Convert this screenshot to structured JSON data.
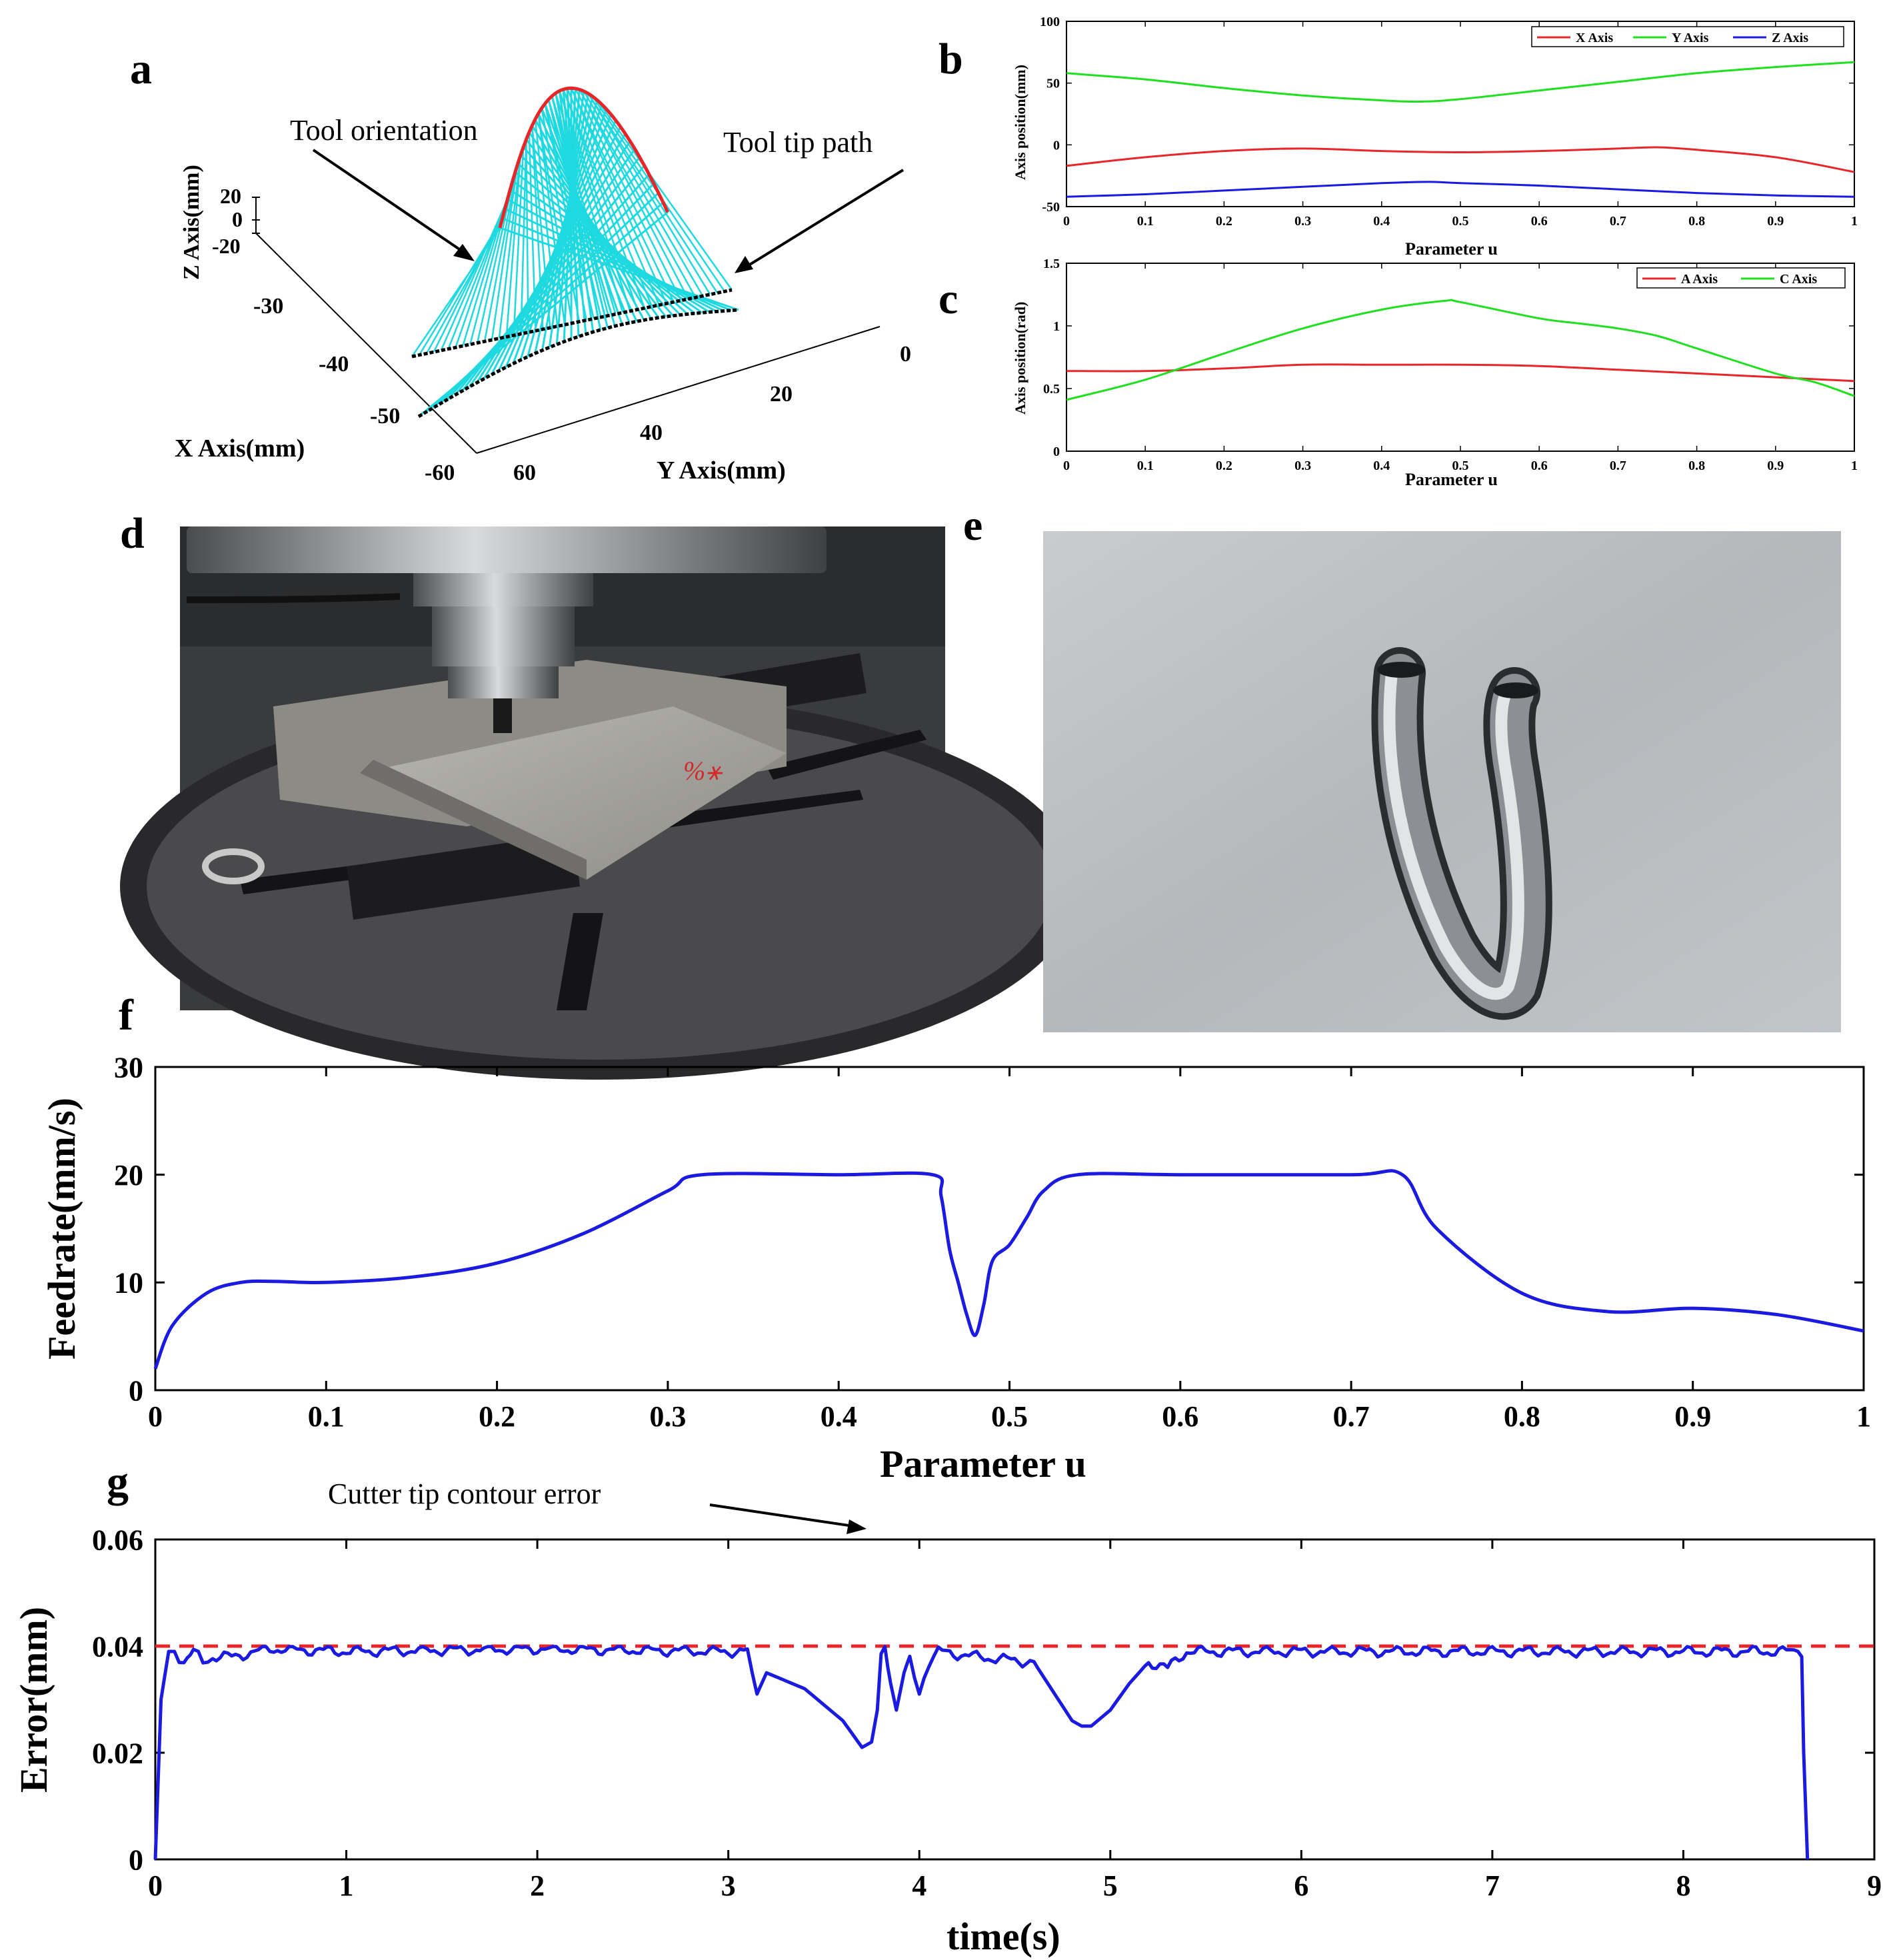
{
  "panel_labels": [
    "a",
    "b",
    "c",
    "d",
    "e",
    "f",
    "g"
  ],
  "colors": {
    "red": "#e8262a",
    "green": "#1fe01f",
    "blue": "#1a1ae0",
    "cyan": "#1fd9e0",
    "black": "#000000",
    "dashed_red": "#e8262a"
  },
  "chart_data": [
    {
      "id": "a",
      "type": "3d-line",
      "annotations": [
        "Tool orientation",
        "Tool tip path"
      ],
      "xlabel": "X Axis(mm)",
      "ylabel": "Y Axis(mm)",
      "zlabel": "Z Axis(mm)",
      "x_ticks": [
        "-30",
        "-40",
        "-50",
        "-60"
      ],
      "y_ticks": [
        "60",
        "40",
        "20",
        "0"
      ],
      "z_ticks": [
        "20",
        "0",
        "-20"
      ],
      "series": [
        {
          "name": "Tool orientation path",
          "color": "#e8262a"
        },
        {
          "name": "Tool tip path",
          "color": "#000000"
        },
        {
          "name": "Tool axis vectors",
          "color": "#1fd9e0"
        }
      ]
    },
    {
      "id": "b",
      "type": "line",
      "xlabel": "Parameter u",
      "ylabel": "Axis position(mm)",
      "xlim": [
        0,
        1
      ],
      "ylim": [
        -50,
        100
      ],
      "x_ticks": [
        "0",
        "0.1",
        "0.2",
        "0.3",
        "0.4",
        "0.5",
        "0.6",
        "0.7",
        "0.8",
        "0.9",
        "1"
      ],
      "y_ticks": [
        "-50",
        "0",
        "50",
        "100"
      ],
      "legend": [
        "X Axis",
        "Y Axis",
        "Z Axis"
      ],
      "series": [
        {
          "name": "X Axis",
          "color": "#e8262a",
          "x": [
            0,
            0.1,
            0.2,
            0.3,
            0.4,
            0.5,
            0.6,
            0.7,
            0.75,
            0.8,
            0.9,
            1
          ],
          "y": [
            -17,
            -10,
            -5,
            -3,
            -5,
            -6,
            -5,
            -3,
            -2,
            -4,
            -10,
            -22
          ]
        },
        {
          "name": "Y Axis",
          "color": "#1fe01f",
          "x": [
            0,
            0.1,
            0.2,
            0.3,
            0.4,
            0.45,
            0.5,
            0.6,
            0.7,
            0.8,
            0.9,
            1
          ],
          "y": [
            58,
            53,
            46,
            40,
            36,
            35,
            37,
            44,
            51,
            58,
            63,
            67
          ]
        },
        {
          "name": "Z Axis",
          "color": "#1a1ae0",
          "x": [
            0,
            0.1,
            0.2,
            0.3,
            0.4,
            0.46,
            0.5,
            0.6,
            0.7,
            0.8,
            0.9,
            1
          ],
          "y": [
            -42,
            -40,
            -37,
            -34,
            -31,
            -30,
            -31,
            -33,
            -36,
            -39,
            -41,
            -42
          ]
        }
      ]
    },
    {
      "id": "c",
      "type": "line",
      "xlabel": "Parameter u",
      "ylabel": "Axis position(rad)",
      "xlim": [
        0,
        1
      ],
      "ylim": [
        0,
        1.5
      ],
      "x_ticks": [
        "0",
        "0.1",
        "0.2",
        "0.3",
        "0.4",
        "0.5",
        "0.6",
        "0.7",
        "0.8",
        "0.9",
        "1"
      ],
      "y_ticks": [
        "0",
        "0.5",
        "1",
        "1.5"
      ],
      "legend": [
        "A Axis",
        "C Axis"
      ],
      "series": [
        {
          "name": "A Axis",
          "color": "#e8262a",
          "x": [
            0,
            0.1,
            0.2,
            0.3,
            0.4,
            0.5,
            0.6,
            0.7,
            0.8,
            0.9,
            1
          ],
          "y": [
            0.64,
            0.64,
            0.66,
            0.69,
            0.69,
            0.69,
            0.68,
            0.65,
            0.62,
            0.59,
            0.56
          ]
        },
        {
          "name": "C Axis",
          "color": "#1fe01f",
          "x": [
            0,
            0.1,
            0.2,
            0.3,
            0.4,
            0.48,
            0.5,
            0.6,
            0.65,
            0.7,
            0.75,
            0.8,
            0.9,
            0.95,
            1
          ],
          "y": [
            0.41,
            0.57,
            0.78,
            0.98,
            1.13,
            1.2,
            1.19,
            1.06,
            1.02,
            0.98,
            0.92,
            0.82,
            0.62,
            0.55,
            0.44
          ]
        }
      ]
    },
    {
      "id": "f",
      "type": "line",
      "xlabel": "Parameter u",
      "ylabel": "Feedrate(mm/s)",
      "xlim": [
        0,
        1
      ],
      "ylim": [
        0,
        30
      ],
      "x_ticks": [
        "0",
        "0.1",
        "0.2",
        "0.3",
        "0.4",
        "0.5",
        "0.6",
        "0.7",
        "0.8",
        "0.9",
        "1"
      ],
      "y_ticks": [
        "0",
        "10",
        "20",
        "30"
      ],
      "series": [
        {
          "name": "Feedrate",
          "color": "#1a1ae0",
          "x": [
            0,
            0.01,
            0.03,
            0.05,
            0.07,
            0.1,
            0.15,
            0.2,
            0.25,
            0.3,
            0.32,
            0.4,
            0.455,
            0.46,
            0.465,
            0.47,
            0.475,
            0.48,
            0.485,
            0.49,
            0.5,
            0.51,
            0.52,
            0.54,
            0.6,
            0.7,
            0.73,
            0.75,
            0.8,
            0.85,
            0.9,
            0.95,
            1
          ],
          "y": [
            2,
            6,
            9,
            10,
            10.1,
            10,
            10.5,
            11.8,
            14.5,
            18.5,
            20,
            20,
            20,
            18,
            13,
            10,
            7,
            5.1,
            8,
            12,
            13.5,
            16,
            18.5,
            20,
            20,
            20,
            20,
            15,
            9,
            7.3,
            7.6,
            7,
            5.5
          ]
        }
      ]
    },
    {
      "id": "g",
      "type": "line",
      "xlabel": "time(s)",
      "ylabel": "Error(mm)",
      "annotation": "Cutter tip contour error",
      "xlim": [
        0,
        9
      ],
      "ylim": [
        0,
        0.06
      ],
      "x_ticks": [
        "0",
        "1",
        "2",
        "3",
        "4",
        "5",
        "6",
        "7",
        "8",
        "9"
      ],
      "y_ticks": [
        "0",
        "0.02",
        "0.04",
        "0.06"
      ],
      "threshold": 0.04,
      "series": [
        {
          "name": "Contour error",
          "color": "#1a1ae0",
          "x": [
            0,
            0.03,
            0.07,
            0.1,
            0.15,
            0.2,
            0.25,
            0.3,
            0.4,
            0.6,
            1,
            2,
            3,
            3.1,
            3.15,
            3.2,
            3.4,
            3.6,
            3.7,
            3.75,
            3.78,
            3.8,
            3.82,
            3.85,
            3.88,
            3.92,
            3.95,
            4.0,
            4.05,
            4.1,
            4.3,
            4.6,
            4.8,
            4.85,
            4.9,
            5.0,
            5.1,
            5.2,
            5.3,
            5.4,
            6,
            7,
            8,
            8.6,
            8.62,
            8.63,
            8.65
          ],
          "y": [
            0,
            0.03,
            0.039,
            0.039,
            0.037,
            0.039,
            0.037,
            0.038,
            0.038,
            0.0395,
            0.039,
            0.0395,
            0.039,
            0.039,
            0.031,
            0.035,
            0.032,
            0.026,
            0.021,
            0.022,
            0.028,
            0.038,
            0.04,
            0.033,
            0.028,
            0.035,
            0.037,
            0.031,
            0.037,
            0.039,
            0.038,
            0.037,
            0.026,
            0.025,
            0.025,
            0.028,
            0.033,
            0.037,
            0.036,
            0.039,
            0.039,
            0.039,
            0.039,
            0.039,
            0.038,
            0.02,
            0
          ]
        }
      ]
    }
  ]
}
